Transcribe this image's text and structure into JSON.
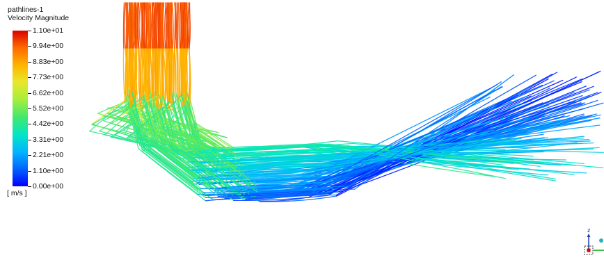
{
  "legend": {
    "title": "pathlines-1",
    "subtitle": "Velocity Magnitude",
    "unit": "[ m/s ]",
    "ticks": [
      "1.10e+01",
      "9.94e+00",
      "8.83e+00",
      "7.73e+00",
      "6.62e+00",
      "5.52e+00",
      "4.42e+00",
      "3.31e+00",
      "2.21e+00",
      "1.10e+00",
      "0.00e+00"
    ],
    "min_value": 0,
    "max_value": 11.0,
    "colormap": [
      "#0000ff",
      "#0063ff",
      "#00b4ff",
      "#00e5c8",
      "#3fe870",
      "#a8ee3c",
      "#e7e82a",
      "#ffb300",
      "#ff6a00",
      "#d90000"
    ]
  },
  "triad": {
    "z_label": "z",
    "z_color": "#1a3fa8",
    "x_color": "#3cc23c",
    "y_color": "#2ab0c8",
    "origin_color": "#d40000"
  }
}
